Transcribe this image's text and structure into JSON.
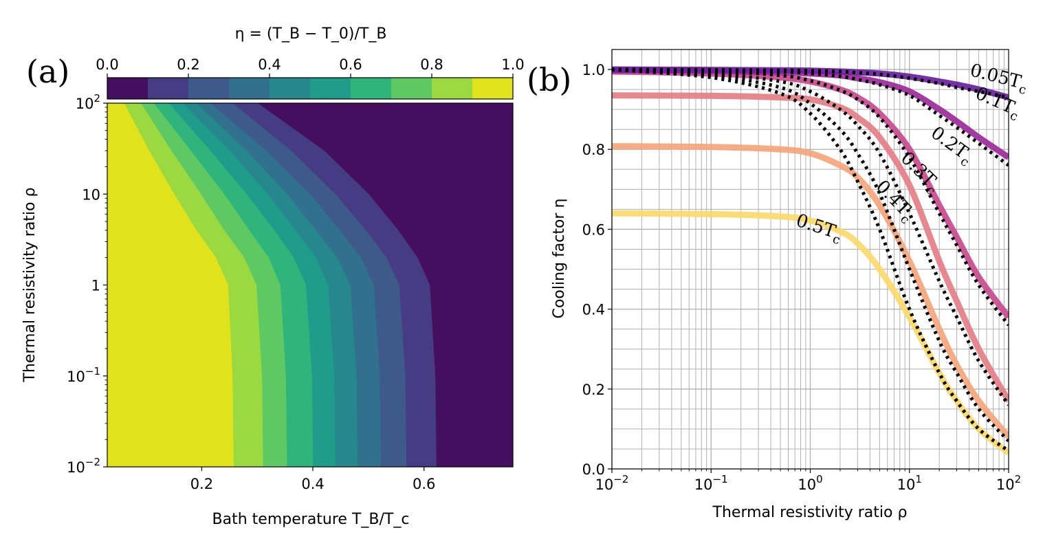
{
  "chart_data": [
    {
      "panel": "(a)",
      "type": "heatmap",
      "subtype": "filled contour",
      "title": "",
      "colorbar_label": "η = (T_B − T_0)/T_B",
      "colorbar_ticks": [
        "0.0",
        "0.2",
        "0.4",
        "0.6",
        "0.8",
        "1.0"
      ],
      "levels": [
        0.0,
        0.1,
        0.2,
        0.3,
        0.4,
        0.5,
        0.6,
        0.7,
        0.8,
        0.9,
        1.0
      ],
      "level_colors": [
        "#440f5f",
        "#463c83",
        "#3e5a8b",
        "#31718e",
        "#26878d",
        "#1f9d8a",
        "#2fb47c",
        "#5ec962",
        "#9ad940",
        "#e0e31b"
      ],
      "xlabel": "Bath temperature T_B/T_c",
      "ylabel": "Thermal resistivity ratio ρ",
      "xlim": [
        0.03,
        0.76
      ],
      "ylim": [
        0.01,
        100
      ],
      "yscale": "log",
      "xticks": [
        "0.2",
        "0.4",
        "0.6"
      ],
      "yticks": [
        "10⁻²",
        "10⁻¹",
        "1",
        "10",
        "10²"
      ],
      "boundaries": [
        {
          "level": 0.9,
          "rho": [
            0.01,
            0.1,
            1,
            2,
            4,
            10,
            30,
            100
          ],
          "tb": [
            0.257,
            0.255,
            0.247,
            0.225,
            0.19,
            0.15,
            0.105,
            0.06
          ]
        },
        {
          "level": 0.8,
          "rho": [
            0.01,
            0.1,
            1,
            2,
            4,
            10,
            30,
            100
          ],
          "tb": [
            0.31,
            0.308,
            0.298,
            0.276,
            0.24,
            0.198,
            0.145,
            0.09
          ]
        },
        {
          "level": 0.7,
          "rho": [
            0.01,
            0.1,
            1,
            2,
            4,
            10,
            30,
            100
          ],
          "tb": [
            0.353,
            0.351,
            0.341,
            0.32,
            0.285,
            0.24,
            0.18,
            0.113
          ]
        },
        {
          "level": 0.6,
          "rho": [
            0.01,
            0.1,
            1,
            2,
            4,
            10,
            30,
            100
          ],
          "tb": [
            0.4,
            0.398,
            0.387,
            0.365,
            0.33,
            0.28,
            0.215,
            0.14
          ]
        },
        {
          "level": 0.5,
          "rho": [
            0.01,
            0.1,
            1,
            2,
            4,
            10,
            30,
            100
          ],
          "tb": [
            0.44,
            0.438,
            0.427,
            0.405,
            0.368,
            0.318,
            0.25,
            0.165
          ]
        },
        {
          "level": 0.4,
          "rho": [
            0.01,
            0.1,
            1,
            2,
            4,
            10,
            30,
            100
          ],
          "tb": [
            0.48,
            0.478,
            0.467,
            0.443,
            0.405,
            0.353,
            0.28,
            0.19
          ]
        },
        {
          "level": 0.3,
          "rho": [
            0.01,
            0.1,
            1,
            2,
            4,
            10,
            30,
            100
          ],
          "tb": [
            0.522,
            0.52,
            0.509,
            0.486,
            0.448,
            0.394,
            0.315,
            0.215
          ]
        },
        {
          "level": 0.2,
          "rho": [
            0.01,
            0.1,
            1,
            2,
            4,
            10,
            30,
            100
          ],
          "tb": [
            0.568,
            0.566,
            0.555,
            0.532,
            0.495,
            0.44,
            0.36,
            0.255
          ]
        },
        {
          "level": 0.1,
          "rho": [
            0.01,
            0.1,
            1,
            2,
            4,
            10,
            30,
            100
          ],
          "tb": [
            0.622,
            0.62,
            0.61,
            0.588,
            0.553,
            0.5,
            0.42,
            0.3
          ]
        }
      ]
    },
    {
      "panel": "(b)",
      "type": "line",
      "title": "",
      "xlabel": "Thermal resistivity ratio ρ",
      "ylabel": "Cooling factor η",
      "xscale": "log",
      "xlim": [
        0.01,
        100
      ],
      "ylim": [
        0.0,
        1.05
      ],
      "grid": true,
      "xticks": [
        "10⁻²",
        "10⁻¹",
        "10⁰",
        "10¹",
        "10²"
      ],
      "yticks": [
        "0.0",
        "0.2",
        "0.4",
        "0.6",
        "0.8",
        "1.0"
      ],
      "x": [
        0.01,
        0.1,
        0.5,
        1,
        2,
        3,
        5,
        10,
        20,
        30,
        50,
        100
      ],
      "series": [
        {
          "name": "0.05T_c",
          "label_main": "0.05T",
          "label_sub": "c",
          "color": "#6a1fa0",
          "values": [
            1.0,
            0.999,
            0.998,
            0.997,
            0.995,
            0.993,
            0.99,
            0.982,
            0.97,
            0.962,
            0.95,
            0.93
          ]
        },
        {
          "name": "0.1T_c",
          "label_main": "0.1T",
          "label_sub": "c",
          "color": "#9b2a9b",
          "values": [
            0.998,
            0.996,
            0.993,
            0.99,
            0.985,
            0.978,
            0.968,
            0.945,
            0.9,
            0.87,
            0.83,
            0.78
          ]
        },
        {
          "name": "0.2T_c",
          "label_main": "0.2T",
          "label_sub": "c",
          "color": "#c94a8e",
          "values": [
            0.995,
            0.99,
            0.98,
            0.97,
            0.95,
            0.93,
            0.89,
            0.8,
            0.66,
            0.58,
            0.48,
            0.38
          ]
        },
        {
          "name": "0.3T_c",
          "label_main": "0.3T",
          "label_sub": "c",
          "color": "#e57e86",
          "values": [
            0.935,
            0.934,
            0.93,
            0.925,
            0.905,
            0.88,
            0.83,
            0.71,
            0.52,
            0.42,
            0.3,
            0.17
          ]
        },
        {
          "name": "0.4T_c",
          "label_main": "0.4T",
          "label_sub": "c",
          "color": "#f5a57a",
          "values": [
            0.808,
            0.806,
            0.8,
            0.79,
            0.76,
            0.73,
            0.66,
            0.52,
            0.35,
            0.26,
            0.17,
            0.08
          ]
        },
        {
          "name": "0.5T_c",
          "label_main": "0.5T",
          "label_sub": "c",
          "color": "#fbd96a",
          "values": [
            0.64,
            0.638,
            0.632,
            0.622,
            0.595,
            0.565,
            0.5,
            0.38,
            0.24,
            0.17,
            0.1,
            0.04
          ]
        }
      ],
      "dotted_series": [
        {
          "name": "0.05T_c approx",
          "values": [
            1.0,
            0.999,
            0.998,
            0.997,
            0.995,
            0.992,
            0.988,
            0.978,
            0.965,
            0.955,
            0.945,
            0.93
          ]
        },
        {
          "name": "0.1T_c approx",
          "values": [
            1.0,
            0.998,
            0.994,
            0.99,
            0.983,
            0.975,
            0.962,
            0.935,
            0.885,
            0.855,
            0.815,
            0.76
          ]
        },
        {
          "name": "0.2T_c approx",
          "values": [
            1.0,
            0.996,
            0.985,
            0.972,
            0.948,
            0.925,
            0.88,
            0.78,
            0.64,
            0.56,
            0.46,
            0.36
          ]
        },
        {
          "name": "0.3T_c approx",
          "values": [
            1.0,
            0.99,
            0.97,
            0.945,
            0.9,
            0.86,
            0.79,
            0.64,
            0.47,
            0.38,
            0.27,
            0.16
          ]
        },
        {
          "name": "0.4T_c approx",
          "values": [
            1.0,
            0.985,
            0.955,
            0.915,
            0.85,
            0.79,
            0.69,
            0.5,
            0.32,
            0.24,
            0.15,
            0.07
          ]
        },
        {
          "name": "0.5T_c approx",
          "values": [
            1.0,
            0.98,
            0.94,
            0.89,
            0.8,
            0.72,
            0.6,
            0.4,
            0.24,
            0.17,
            0.1,
            0.045
          ]
        }
      ],
      "label_positions": [
        "top-right along curves"
      ]
    }
  ]
}
